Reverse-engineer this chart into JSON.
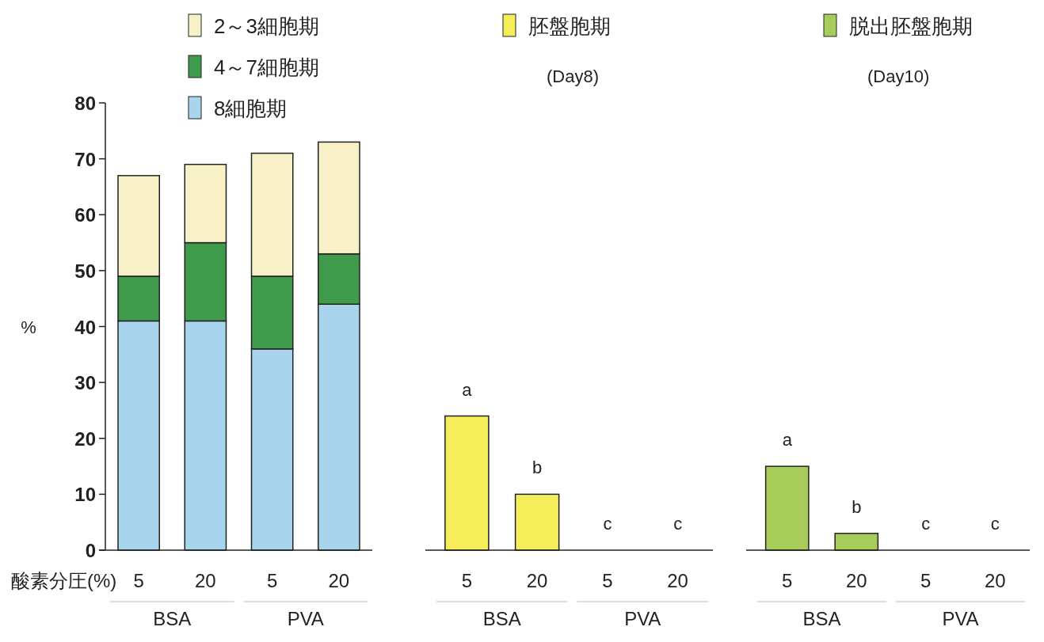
{
  "chart_data": [
    {
      "type": "bar",
      "stacked": true,
      "categories": [
        "5",
        "20",
        "5",
        "20"
      ],
      "xlabel": "酸素分圧(%)",
      "ylabel": "%",
      "ylim": [
        0,
        80
      ],
      "yticks": [
        0,
        10,
        20,
        30,
        40,
        50,
        60,
        70,
        80
      ],
      "grid": false,
      "legend": "top",
      "annotations": [
        "BSA",
        "PVA"
      ],
      "series": [
        {
          "name": "8細胞期",
          "color": "#a8d4ee",
          "values": [
            41,
            41,
            36,
            44
          ]
        },
        {
          "name": "4～7細胞期",
          "color": "#3f9a4c",
          "values": [
            8,
            14,
            13,
            9
          ]
        },
        {
          "name": "2～3細胞期",
          "color": "#f8f1c8",
          "values": [
            18,
            14,
            22,
            20
          ]
        }
      ]
    },
    {
      "type": "bar",
      "categories": [
        "5",
        "20",
        "5",
        "20"
      ],
      "ylim": [
        0,
        80
      ],
      "tick_labels": "x",
      "legend": "top",
      "legend_title": "(Day8)",
      "annotations": [
        "BSA",
        "PVA"
      ],
      "series": [
        {
          "name": "胚盤胞期",
          "color": "#f5ee5a",
          "values": [
            24,
            10,
            0,
            0
          ],
          "value_labels": [
            "a",
            "b",
            "c",
            "c"
          ]
        }
      ]
    },
    {
      "type": "bar",
      "categories": [
        "5",
        "20",
        "5",
        "20"
      ],
      "ylim": [
        0,
        80
      ],
      "tick_labels": "x",
      "legend": "top",
      "legend_title": "(Day10)",
      "annotations": [
        "BSA",
        "PVA"
      ],
      "series": [
        {
          "name": "脱出胚盤胞期",
          "color": "#a8cc5a",
          "values": [
            15,
            3,
            0,
            0
          ],
          "value_labels": [
            "a",
            "b",
            "c",
            "c"
          ]
        }
      ]
    }
  ]
}
